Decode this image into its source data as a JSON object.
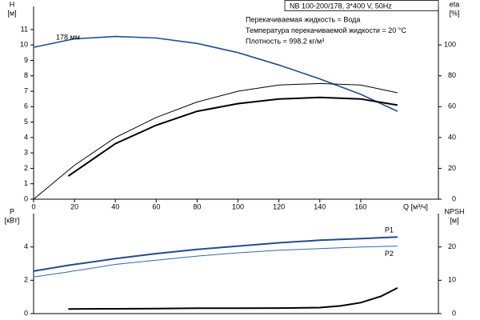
{
  "chart_data": [
    {
      "type": "line",
      "title": "NB 100-200/178, 3*400 V, 50Hz",
      "annotations": [
        "Перекачиваемая жидкость = Вода",
        "Температура перекачиваемой жидкости = 20 °C",
        "Плотность = 998.2 кг/м³",
        "178 мм"
      ],
      "ylabel": "H",
      "yunit": "[м]",
      "y2label": "eta",
      "y2unit": "[%]",
      "xlabel": "Q [м³/ч]",
      "xlim": [
        0,
        198
      ],
      "xticks": [
        0,
        20,
        40,
        60,
        80,
        100,
        120,
        140,
        160
      ],
      "ylim": [
        0,
        12.5
      ],
      "yticks": [
        0,
        1,
        2,
        3,
        4,
        5,
        6,
        7,
        8,
        9,
        10,
        11
      ],
      "y2lim": [
        0,
        125
      ],
      "y2ticks": [
        0,
        20,
        40,
        60,
        80,
        100
      ],
      "series": [
        {
          "color": "#1f4e8c",
          "linewidth": 1.6,
          "axis": "y",
          "x": [
            0,
            20,
            40,
            60,
            80,
            100,
            120,
            140,
            160,
            178
          ],
          "values": [
            9.85,
            10.4,
            10.55,
            10.45,
            10.1,
            9.5,
            8.7,
            7.8,
            6.8,
            5.7
          ]
        },
        {
          "color": "#000000",
          "linewidth": 1,
          "axis": "y2",
          "x": [
            0,
            20,
            40,
            60,
            80,
            100,
            120,
            140,
            160,
            178
          ],
          "values": [
            0,
            22,
            40,
            53,
            63,
            70,
            74,
            75,
            74,
            69
          ]
        },
        {
          "color": "#000000",
          "linewidth": 2,
          "axis": "y2",
          "x": [
            17,
            40,
            60,
            80,
            100,
            120,
            140,
            160,
            178
          ],
          "values": [
            15,
            36,
            48,
            57,
            62,
            65,
            66,
            65,
            61
          ]
        }
      ]
    },
    {
      "type": "line",
      "ylabel": "P",
      "yunit": "[кВт]",
      "y2label": "NPSH",
      "y2unit": "[м]",
      "xlim": [
        0,
        198
      ],
      "ylim": [
        0,
        6
      ],
      "yticks": [
        0,
        2,
        4
      ],
      "y2lim": [
        0,
        30
      ],
      "y2ticks": [
        0,
        10,
        20
      ],
      "series": [
        {
          "name": "P1",
          "color": "#1f4e8c",
          "linewidth": 2,
          "axis": "y",
          "x": [
            0,
            17,
            40,
            60,
            80,
            100,
            120,
            140,
            160,
            178
          ],
          "values": [
            2.55,
            2.9,
            3.3,
            3.6,
            3.85,
            4.05,
            4.25,
            4.4,
            4.5,
            4.6
          ]
        },
        {
          "name": "P2",
          "color": "#2e6aa8",
          "linewidth": 1,
          "axis": "y",
          "x": [
            0,
            17,
            40,
            60,
            80,
            100,
            120,
            140,
            160,
            178
          ],
          "values": [
            2.2,
            2.5,
            2.95,
            3.2,
            3.45,
            3.65,
            3.8,
            3.9,
            4.0,
            4.05
          ]
        },
        {
          "color": "#000000",
          "linewidth": 2,
          "axis": "y2",
          "x": [
            17,
            40,
            60,
            80,
            100,
            120,
            140,
            150,
            160,
            170,
            178
          ],
          "values": [
            1.4,
            1.45,
            1.5,
            1.6,
            1.6,
            1.65,
            1.8,
            2.3,
            3.3,
            5.2,
            7.7
          ]
        }
      ]
    }
  ]
}
